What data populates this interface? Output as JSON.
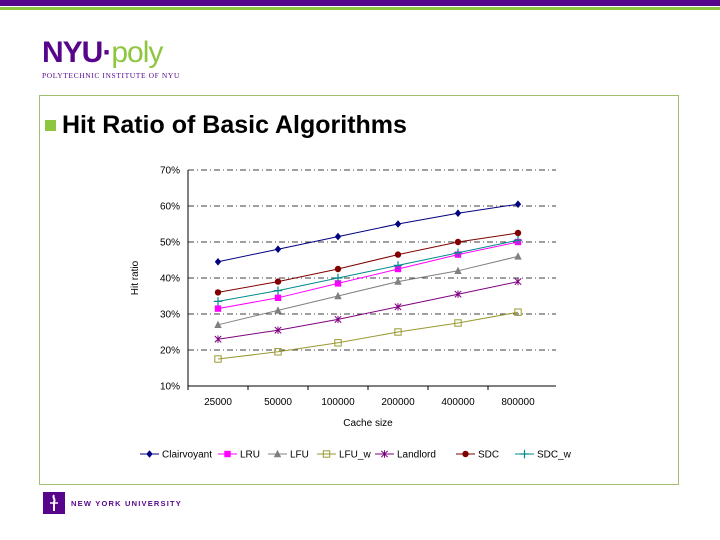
{
  "header": {
    "logo_main": "NYU",
    "logo_dot": "·",
    "logo_poly": "poly",
    "logo_sub": "POLYTECHNIC INSTITUTE OF NYU"
  },
  "slide": {
    "title": "Hit Ratio of Basic Algorithms"
  },
  "footer": {
    "university": "NEW YORK UNIVERSITY"
  },
  "colors": {
    "brand_purple": "#57068c",
    "brand_green": "#8ec63f"
  },
  "chart_data": {
    "type": "line",
    "xlabel": "Cache size",
    "ylabel": "Hit ratio",
    "categories": [
      "25000",
      "50000",
      "100000",
      "200000",
      "400000",
      "800000"
    ],
    "ylim": [
      10,
      70
    ],
    "yticks": [
      "10%",
      "20%",
      "30%",
      "40%",
      "50%",
      "60%",
      "70%"
    ],
    "grid": true,
    "legend": "bottom",
    "series": [
      {
        "name": "Clairvoyant",
        "color": "#000080",
        "marker": "diamond",
        "values": [
          44.5,
          48,
          51.5,
          55,
          58,
          60.5
        ]
      },
      {
        "name": "LRU",
        "color": "#ff00ff",
        "marker": "square",
        "values": [
          31.5,
          34.5,
          38.5,
          42.5,
          46.5,
          50
        ]
      },
      {
        "name": "LFU",
        "color": "#808080",
        "marker": "triangle",
        "values": [
          27,
          31,
          35,
          39,
          42,
          46
        ]
      },
      {
        "name": "LFU_w",
        "color": "#999933",
        "marker": "square-open",
        "values": [
          17.5,
          19.5,
          22,
          25,
          27.5,
          30.5
        ]
      },
      {
        "name": "Landlord",
        "color": "#800080",
        "marker": "star",
        "values": [
          23,
          25.5,
          28.5,
          32,
          35.5,
          39
        ]
      },
      {
        "name": "SDC",
        "color": "#800000",
        "marker": "circle",
        "values": [
          36,
          39,
          42.5,
          46.5,
          50,
          52.5
        ]
      },
      {
        "name": "SDC_w",
        "color": "#008b8b",
        "marker": "plus",
        "values": [
          33.5,
          36.5,
          40,
          43.5,
          47,
          50.5
        ]
      }
    ]
  }
}
